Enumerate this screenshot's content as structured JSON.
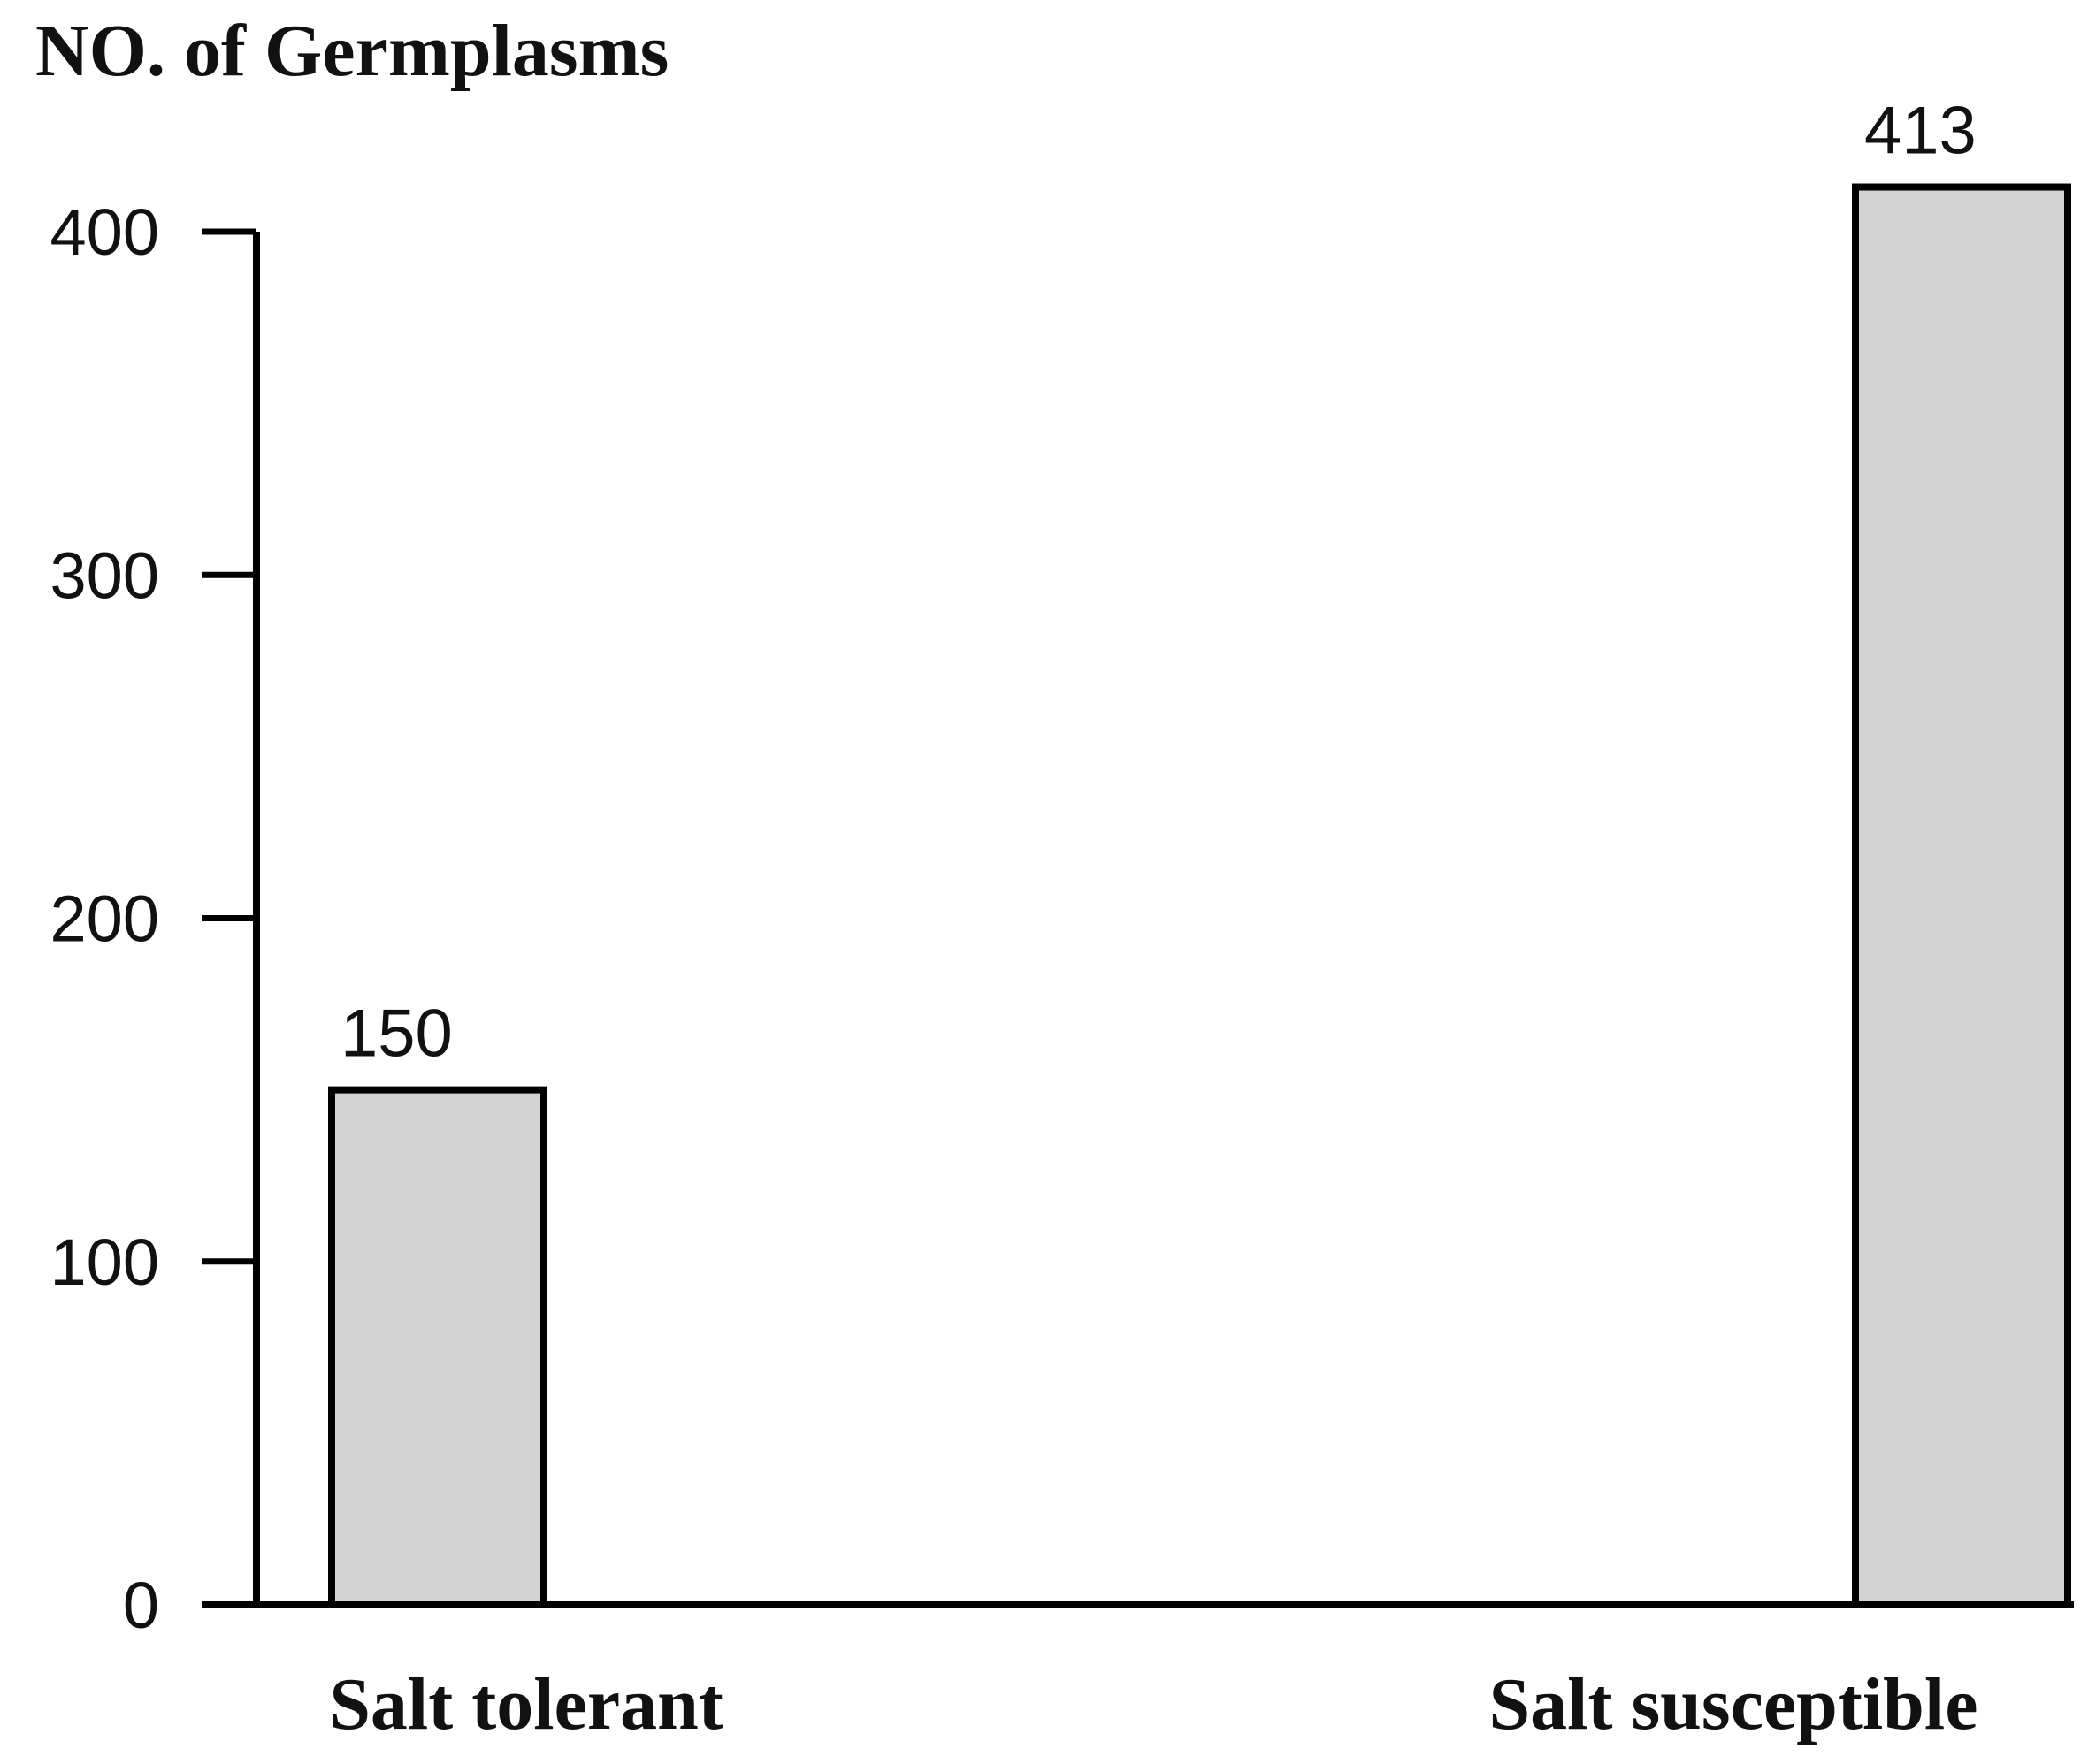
{
  "chart_data": {
    "type": "bar",
    "title": "",
    "ylabel": "NO. of Germplasms",
    "xlabel": "",
    "categories": [
      "Salt tolerant",
      "Salt susceptible"
    ],
    "values": [
      150,
      413
    ],
    "data_labels": [
      "150",
      "413"
    ],
    "ylim": [
      0,
      400
    ],
    "yticks": [
      0,
      100,
      200,
      300,
      400
    ],
    "ytick_labels": [
      "0",
      "100",
      "200",
      "300",
      "400"
    ],
    "grid": false,
    "legend": "none",
    "bar_fill": "#d3d3d3",
    "bar_stroke": "#000000"
  }
}
